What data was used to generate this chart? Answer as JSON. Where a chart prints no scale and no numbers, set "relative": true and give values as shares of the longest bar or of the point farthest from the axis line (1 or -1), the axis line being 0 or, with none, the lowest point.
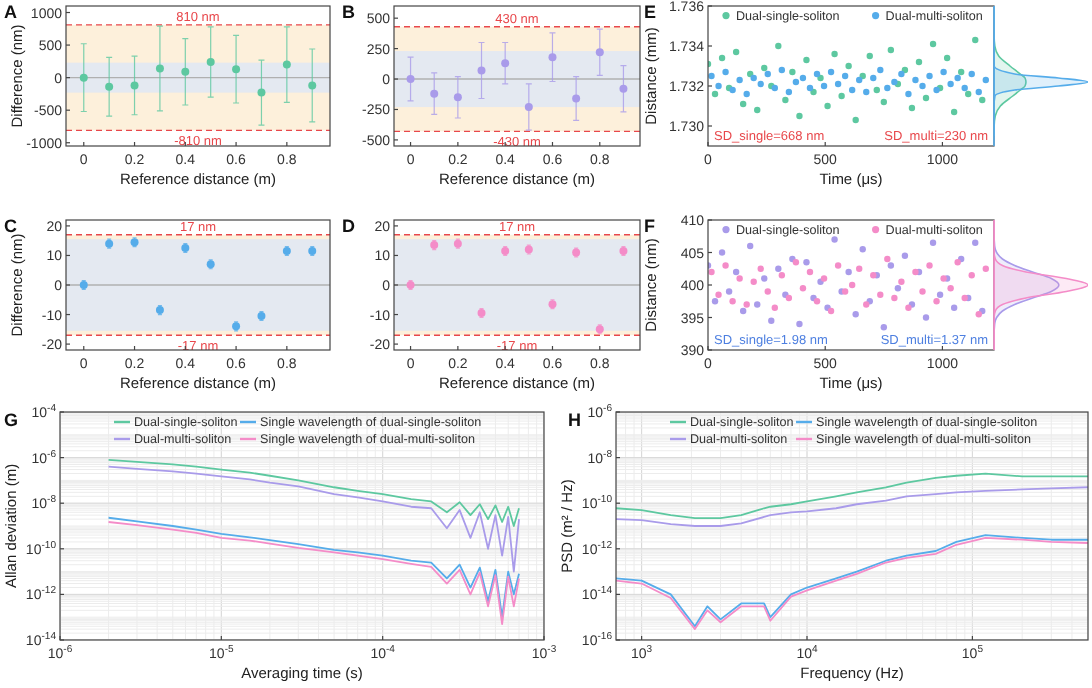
{
  "chart_data": [
    {
      "type": "scatter",
      "title": "A",
      "xlabel": "Reference distance (m)",
      "ylabel": "Difference (nm)",
      "x": [
        0,
        0.1,
        0.2,
        0.3,
        0.4,
        0.5,
        0.6,
        0.7,
        0.8,
        0.9
      ],
      "xlim": [
        -0.07,
        0.97
      ],
      "xticks": [
        0,
        0.2,
        0.4,
        0.6,
        0.8
      ],
      "ylim": [
        -1050,
        1100
      ],
      "yticks": [
        -1000,
        -500,
        0,
        500,
        1000
      ],
      "marker": "circle",
      "series": [
        {
          "color": "#5dc8a0",
          "values": [
            0,
            -140,
            -120,
            140,
            90,
            240,
            130,
            -230,
            200,
            -120
          ],
          "errors": [
            520,
            450,
            450,
            650,
            510,
            540,
            520,
            500,
            580,
            560
          ]
        }
      ],
      "bands": [
        {
          "axis": "y",
          "from": -810,
          "to": 810,
          "color": "#fdf0db"
        },
        {
          "axis": "y",
          "from": -230,
          "to": 230,
          "color": "#e4e9f1"
        }
      ],
      "ref_lines": [
        {
          "axis": "y",
          "value": 810,
          "label": "810 nm",
          "color": "#e8474b",
          "line_style": "dashed"
        },
        {
          "axis": "y",
          "value": -810,
          "label": "-810 nm",
          "color": "#e8474b",
          "line_style": "dashed"
        },
        {
          "axis": "y",
          "value": 0,
          "color": "#b0b0b0",
          "line_style": "solid"
        }
      ]
    },
    {
      "type": "scatter",
      "title": "B",
      "xlabel": "Reference distance (m)",
      "x": [
        0,
        0.1,
        0.2,
        0.3,
        0.4,
        0.5,
        0.6,
        0.7,
        0.8,
        0.9
      ],
      "xlim": [
        -0.07,
        0.97
      ],
      "xticks": [
        0,
        0.2,
        0.4,
        0.6,
        0.8
      ],
      "ylim": [
        -550,
        600
      ],
      "yticks": [
        -500,
        -250,
        0,
        250,
        500
      ],
      "marker": "circle",
      "series": [
        {
          "color": "#a99bea",
          "values": [
            0,
            -120,
            -150,
            70,
            130,
            -230,
            180,
            -160,
            220,
            -80
          ],
          "errors": [
            180,
            170,
            170,
            230,
            170,
            190,
            200,
            180,
            190,
            190
          ]
        }
      ],
      "bands": [
        {
          "axis": "y",
          "from": -430,
          "to": 430,
          "color": "#fdf0db"
        },
        {
          "axis": "y",
          "from": -230,
          "to": 230,
          "color": "#e4e9f1"
        }
      ],
      "ref_lines": [
        {
          "axis": "y",
          "value": 430,
          "label": "430 nm",
          "color": "#e8474b",
          "line_style": "dashed"
        },
        {
          "axis": "y",
          "value": -430,
          "label": "-430 nm",
          "color": "#e8474b",
          "line_style": "dashed"
        },
        {
          "axis": "y",
          "value": 0,
          "color": "#b0b0b0",
          "line_style": "solid"
        }
      ]
    },
    {
      "type": "scatter",
      "title": "E",
      "xlabel": "Time (μs)",
      "ylabel": "Distance (mm)",
      "xlim": [
        0,
        1220
      ],
      "xticks": [
        0,
        500,
        1000
      ],
      "ylim": [
        1.729,
        1.736
      ],
      "yticks": [
        {
          "value": 1.73,
          "label": "1.730"
        },
        {
          "value": 1.732,
          "label": "1.732"
        },
        {
          "value": 1.734,
          "label": "1.734"
        },
        {
          "value": 1.736,
          "label": "1.736"
        }
      ],
      "marker": "circle",
      "legend": "top",
      "annotations": [
        "SD_single=668 nm",
        "SD_multi=230 nm"
      ],
      "series": [
        {
          "name": "Dual-single-soliton",
          "color": "#5dc8a0",
          "x": [
            0,
            30,
            60,
            90,
            120,
            150,
            180,
            210,
            240,
            270,
            300,
            330,
            360,
            390,
            420,
            450,
            480,
            510,
            540,
            570,
            600,
            630,
            660,
            690,
            720,
            750,
            780,
            810,
            840,
            870,
            900,
            930,
            960,
            990,
            1020,
            1050,
            1080,
            1110,
            1140,
            1170
          ],
          "values": [
            1.7331,
            1.7316,
            1.7334,
            1.7319,
            1.7337,
            1.7311,
            1.7326,
            1.7308,
            1.7329,
            1.732,
            1.734,
            1.7313,
            1.7327,
            1.7305,
            1.7333,
            1.7317,
            1.7324,
            1.731,
            1.7336,
            1.7315,
            1.733,
            1.7303,
            1.7325,
            1.7335,
            1.7318,
            1.7312,
            1.7338,
            1.7321,
            1.7328,
            1.7309,
            1.7332,
            1.7314,
            1.7341,
            1.7319,
            1.7334,
            1.7307,
            1.7327,
            1.7316,
            1.7343,
            1.7313
          ]
        },
        {
          "name": "Dual-multi-soliton",
          "color": "#55acea",
          "x": [
            15,
            45,
            75,
            105,
            135,
            165,
            195,
            225,
            255,
            285,
            315,
            345,
            375,
            405,
            435,
            465,
            495,
            525,
            555,
            585,
            615,
            645,
            675,
            705,
            735,
            765,
            795,
            825,
            855,
            885,
            915,
            945,
            975,
            1005,
            1035,
            1065,
            1095,
            1125,
            1155,
            1185
          ],
          "values": [
            1.7325,
            1.732,
            1.7327,
            1.7318,
            1.7323,
            1.7316,
            1.7324,
            1.7321,
            1.7326,
            1.7319,
            1.7328,
            1.7317,
            1.7322,
            1.7324,
            1.7319,
            1.7326,
            1.732,
            1.7327,
            1.7321,
            1.7325,
            1.7318,
            1.7323,
            1.7317,
            1.7324,
            1.7328,
            1.7319,
            1.7322,
            1.7326,
            1.7316,
            1.7323,
            1.732,
            1.7325,
            1.7318,
            1.7327,
            1.7321,
            1.7324,
            1.7319,
            1.7326,
            1.7317,
            1.7323
          ]
        }
      ]
    },
    {
      "type": "area",
      "relative": true,
      "orientation": "horizontal",
      "ylim": [
        1.729,
        1.736
      ],
      "x": [
        1.7295,
        1.73,
        1.7305,
        1.731,
        1.7315,
        1.7318,
        1.732,
        1.7322,
        1.7324,
        1.7326,
        1.733,
        1.7335,
        1.734,
        1.7345,
        1.735,
        1.736
      ],
      "series": [
        {
          "color": "#5dc8a0",
          "values": [
            0,
            0.0015,
            0.013,
            0.068,
            0.2,
            0.28,
            0.33,
            0.34,
            0.33,
            0.28,
            0.17,
            0.05,
            0.009,
            0.001,
            0,
            0
          ]
        },
        {
          "color": "#55acea",
          "values": [
            0,
            0,
            0,
            0,
            0.01,
            0.22,
            0.685,
            1,
            0.685,
            0.22,
            0.002,
            0,
            0,
            0,
            0,
            0
          ]
        }
      ]
    },
    {
      "type": "scatter",
      "title": "C",
      "xlabel": "Reference distance (m)",
      "ylabel": "Difference (nm)",
      "x": [
        0,
        0.1,
        0.2,
        0.3,
        0.4,
        0.5,
        0.6,
        0.7,
        0.8,
        0.9
      ],
      "xlim": [
        -0.07,
        0.97
      ],
      "xticks": [
        0,
        0.2,
        0.4,
        0.6,
        0.8
      ],
      "ylim": [
        -22,
        22
      ],
      "yticks": [
        -20,
        -10,
        0,
        10,
        20
      ],
      "marker": "circle",
      "series": [
        {
          "color": "#55acea",
          "values": [
            0,
            14,
            14.5,
            -8.5,
            12.5,
            7,
            -14,
            -10.5,
            11.5,
            11.5
          ],
          "errors": [
            1.5,
            1.5,
            1.5,
            1.5,
            1.5,
            1.5,
            1.5,
            1.5,
            1.5,
            1.5
          ]
        }
      ],
      "bands": [
        {
          "axis": "y",
          "from": -17,
          "to": 17,
          "color": "#fdf0db"
        },
        {
          "axis": "y",
          "from": -15.5,
          "to": 15.5,
          "color": "#e4e9f1"
        }
      ],
      "ref_lines": [
        {
          "axis": "y",
          "value": 17,
          "label": "17 nm",
          "color": "#e8474b",
          "line_style": "dashed"
        },
        {
          "axis": "y",
          "value": -17,
          "label": "-17 nm",
          "color": "#e8474b",
          "line_style": "dashed"
        },
        {
          "axis": "y",
          "value": 0,
          "color": "#b0b0b0",
          "line_style": "solid"
        }
      ]
    },
    {
      "type": "scatter",
      "title": "D",
      "xlabel": "Reference distance (m)",
      "x": [
        0,
        0.1,
        0.2,
        0.3,
        0.4,
        0.5,
        0.6,
        0.7,
        0.8,
        0.9
      ],
      "xlim": [
        -0.07,
        0.97
      ],
      "xticks": [
        0,
        0.2,
        0.4,
        0.6,
        0.8
      ],
      "ylim": [
        -22,
        22
      ],
      "yticks": [
        -20,
        -10,
        0,
        10,
        20
      ],
      "marker": "circle",
      "series": [
        {
          "color": "#f48cc8",
          "values": [
            0,
            13.5,
            14,
            -9.5,
            11.5,
            12,
            -6.5,
            11,
            -15,
            11.5
          ],
          "errors": [
            1.5,
            1.5,
            1.5,
            1.5,
            1.5,
            1.5,
            1.5,
            1.5,
            1.5,
            1.5
          ]
        }
      ],
      "bands": [
        {
          "axis": "y",
          "from": -17,
          "to": 17,
          "color": "#fdf0db"
        },
        {
          "axis": "y",
          "from": -15.5,
          "to": 15.5,
          "color": "#e4e9f1"
        }
      ],
      "ref_lines": [
        {
          "axis": "y",
          "value": 17,
          "label": "17 nm",
          "color": "#e8474b",
          "line_style": "dashed"
        },
        {
          "axis": "y",
          "value": -17,
          "label": "-17 nm",
          "color": "#e8474b",
          "line_style": "dashed"
        },
        {
          "axis": "y",
          "value": 0,
          "color": "#b0b0b0",
          "line_style": "solid"
        }
      ]
    },
    {
      "type": "scatter",
      "title": "F",
      "xlabel": "Time (μs)",
      "ylabel": "Distance (nm)",
      "xlim": [
        0,
        1220
      ],
      "xticks": [
        0,
        500,
        1000
      ],
      "ylim": [
        390,
        410
      ],
      "yticks": [
        390,
        395,
        400,
        405,
        410
      ],
      "marker": "circle",
      "legend": "top",
      "annotations": [
        "SD_single=1.98 nm",
        "SD_multi=1.37 nm"
      ],
      "series": [
        {
          "name": "Dual-single-soliton",
          "color": "#a99bea",
          "x": [
            0,
            30,
            60,
            90,
            120,
            150,
            180,
            210,
            240,
            270,
            300,
            330,
            360,
            390,
            420,
            450,
            480,
            510,
            540,
            570,
            600,
            630,
            660,
            690,
            720,
            750,
            780,
            810,
            840,
            870,
            900,
            930,
            960,
            990,
            1020,
            1050,
            1080,
            1110,
            1140,
            1170
          ],
          "values": [
            403,
            397.5,
            405,
            399,
            402,
            396,
            406,
            397,
            401,
            394.5,
            402.5,
            398.5,
            404,
            394,
            403.5,
            398,
            400.5,
            396.5,
            407,
            399,
            402,
            395.5,
            405.5,
            397.5,
            401.5,
            393.5,
            403,
            399.5,
            404.5,
            397,
            402,
            395,
            406.5,
            398.5,
            401,
            396.5,
            404,
            398,
            406.5,
            396
          ]
        },
        {
          "name": "Dual-multi-soliton",
          "color": "#f48cc8",
          "x": [
            15,
            45,
            75,
            105,
            135,
            165,
            195,
            225,
            255,
            285,
            315,
            345,
            375,
            405,
            435,
            465,
            495,
            525,
            555,
            585,
            615,
            645,
            675,
            705,
            735,
            765,
            795,
            825,
            855,
            885,
            915,
            945,
            975,
            1005,
            1035,
            1065,
            1095,
            1125,
            1155,
            1185
          ],
          "values": [
            402,
            398.5,
            403,
            397.5,
            401,
            397,
            400.5,
            402.5,
            399,
            396.5,
            401.5,
            398,
            403.5,
            399.5,
            402,
            397.5,
            401,
            396,
            403,
            399,
            400,
            402.5,
            397,
            401.5,
            398.5,
            404,
            398,
            400.5,
            396.5,
            402,
            399,
            403,
            397.5,
            401,
            399.5,
            403.5,
            398,
            401.5,
            395.5,
            402.5
          ]
        }
      ]
    },
    {
      "type": "area",
      "relative": true,
      "orientation": "horizontal",
      "ylim": [
        390,
        410
      ],
      "x": [
        390,
        392,
        394,
        395,
        396,
        397,
        398,
        399,
        400,
        401,
        402,
        403,
        404,
        405,
        406,
        408,
        410
      ],
      "series": [
        {
          "color": "#a99bea",
          "values": [
            0,
            0,
            0.007,
            0.028,
            0.09,
            0.22,
            0.41,
            0.61,
            0.69,
            0.61,
            0.41,
            0.22,
            0.09,
            0.028,
            0.007,
            0,
            0
          ]
        },
        {
          "color": "#f48cc8",
          "values": [
            0,
            0,
            0,
            0.001,
            0.014,
            0.09,
            0.34,
            0.77,
            1,
            0.77,
            0.34,
            0.09,
            0.014,
            0.001,
            0,
            0,
            0
          ]
        }
      ]
    },
    {
      "type": "line",
      "title": "G",
      "xlabel": "Averaging time (s)",
      "ylabel": "Allan deviation (m)",
      "log": "xy",
      "grid": true,
      "legend": "top",
      "xlim": [
        1e-06,
        0.001
      ],
      "xticks": [
        {
          "value": 1e-06,
          "label": "10$^{-6}$"
        },
        {
          "value": 1e-05,
          "label": "10$^{-5}$"
        },
        {
          "value": 0.0001,
          "label": "10$^{-4}$"
        },
        {
          "value": 0.001,
          "label": "10$^{-3}$"
        }
      ],
      "ylim": [
        1e-14,
        0.0001
      ],
      "yticks": [
        {
          "value": 1e-14,
          "label": "10$^{-14}$"
        },
        {
          "value": 1e-12,
          "label": "10$^{-12}$"
        },
        {
          "value": 1e-10,
          "label": "10$^{-10}$"
        },
        {
          "value": 1e-08,
          "label": "10$^{-8}$"
        },
        {
          "value": 1e-06,
          "label": "10$^{-6}$"
        },
        {
          "value": 0.0001,
          "label": "10$^{-4}$"
        }
      ],
      "x": [
        2e-06,
        3e-06,
        5e-06,
        7e-06,
        1e-05,
        1.5e-05,
        2e-05,
        3e-05,
        5e-05,
        7e-05,
        0.0001,
        0.00015,
        0.0002,
        0.00025,
        0.0003,
        0.00035,
        0.0004,
        0.00045,
        0.0005,
        0.00055,
        0.0006,
        0.00065,
        0.0007
      ],
      "series": [
        {
          "name": "Dual-single-soliton",
          "color": "#5dc8a0",
          "values": [
            8e-07,
            6.5e-07,
            5e-07,
            4e-07,
            3e-07,
            2.2e-07,
            1.6e-07,
            1e-07,
            5e-08,
            3.5e-08,
            2.5e-08,
            1.5e-08,
            1.2e-08,
            4e-09,
            1.1e-08,
            3e-09,
            9e-09,
            2e-09,
            8e-09,
            1.5e-09,
            7e-09,
            1e-09,
            6e-09
          ]
        },
        {
          "name": "Dual-multi-soliton",
          "color": "#a99bea",
          "values": [
            4e-07,
            3.2e-07,
            2.5e-07,
            2e-07,
            1.5e-07,
            1.1e-07,
            8e-08,
            5.5e-08,
            2.5e-08,
            1.8e-08,
            1.2e-08,
            7e-09,
            6e-09,
            8e-10,
            5e-09,
            3e-10,
            4e-09,
            1e-10,
            3e-09,
            5e-11,
            2.5e-09,
            1e-11,
            2e-09
          ]
        },
        {
          "name": "Single wavelength of dual-single-soliton",
          "color": "#55acea",
          "values": [
            2.3e-09,
            1.6e-09,
            1e-09,
            7e-10,
            4.5e-10,
            3.2e-10,
            2.4e-10,
            1.6e-10,
            9e-11,
            7e-11,
            5e-11,
            3e-11,
            2.5e-11,
            5e-12,
            2e-11,
            2e-12,
            1.5e-11,
            5e-13,
            1.2e-11,
            1e-13,
            1e-11,
            1e-12,
            8e-12
          ]
        },
        {
          "name": "Single wavelength of dual-multi-soliton",
          "color": "#f48cc8",
          "values": [
            1.5e-09,
            1.1e-09,
            7e-10,
            5e-10,
            3e-10,
            2.3e-10,
            1.7e-10,
            1.1e-10,
            7e-11,
            5e-11,
            3.5e-11,
            2.2e-11,
            1.6e-11,
            3e-12,
            1.2e-11,
            1e-12,
            9e-12,
            3e-13,
            7e-12,
            5e-14,
            6e-12,
            3e-13,
            5e-12
          ]
        }
      ]
    },
    {
      "type": "line",
      "title": "H",
      "xlabel": "Frequency (Hz)",
      "ylabel": "PSD (m² / Hz)",
      "log": "xy",
      "grid": true,
      "legend": "top",
      "xlim": [
        700,
        500000.0
      ],
      "xticks": [
        {
          "value": 1000,
          "label": "10$^{3}$"
        },
        {
          "value": 10000,
          "label": "10$^{4}$"
        },
        {
          "value": 100000,
          "label": "10$^{5}$"
        }
      ],
      "ylim": [
        1e-16,
        1e-06
      ],
      "yticks": [
        {
          "value": 1e-16,
          "label": "10$^{-16}$"
        },
        {
          "value": 1e-14,
          "label": "10$^{-14}$"
        },
        {
          "value": 1e-12,
          "label": "10$^{-12}$"
        },
        {
          "value": 1e-10,
          "label": "10$^{-10}$"
        },
        {
          "value": 1e-08,
          "label": "10$^{-8}$"
        },
        {
          "value": 1e-06,
          "label": "10$^{-6}$"
        }
      ],
      "x": [
        700,
        1000,
        1500,
        2100,
        2500,
        3000,
        4000,
        5500,
        6000,
        8000,
        10000,
        15000,
        20000,
        30000,
        40000,
        60000,
        80000,
        120000,
        200000,
        300000,
        500000
      ],
      "series": [
        {
          "name": "Dual-single-soliton",
          "color": "#5dc8a0",
          "values": [
            6e-11,
            5e-11,
            3e-11,
            2.2e-11,
            2.2e-11,
            2.2e-11,
            3e-11,
            6e-11,
            7e-11,
            9e-11,
            1.2e-10,
            2e-10,
            3e-10,
            5e-10,
            8e-10,
            1.3e-09,
            1.6e-09,
            2e-09,
            1.5e-09,
            1.5e-09,
            1.5e-09
          ]
        },
        {
          "name": "Dual-multi-soliton",
          "color": "#a99bea",
          "values": [
            2e-11,
            1.8e-11,
            1.2e-11,
            1e-11,
            1e-11,
            1e-11,
            1.3e-11,
            2.5e-11,
            3e-11,
            4e-11,
            4.4e-11,
            6e-11,
            9e-11,
            1.3e-10,
            2e-10,
            2.5e-10,
            3e-10,
            3.5e-10,
            4e-10,
            4.5e-10,
            5e-10
          ]
        },
        {
          "name": "Single wavelength of dual-single-soliton",
          "color": "#55acea",
          "values": [
            5e-14,
            4e-14,
            1e-14,
            4e-16,
            3e-15,
            8e-16,
            4e-15,
            4e-15,
            1e-15,
            1e-14,
            2e-14,
            5e-14,
            1e-13,
            3e-13,
            5e-13,
            8e-13,
            2e-12,
            4e-12,
            3e-12,
            2.5e-12,
            2.5e-12
          ]
        },
        {
          "name": "Single wavelength of dual-multi-soliton",
          "color": "#f48cc8",
          "values": [
            4e-14,
            3e-14,
            7e-15,
            3e-16,
            2e-15,
            6e-16,
            3e-15,
            3e-15,
            7e-16,
            8e-15,
            1.5e-14,
            4e-14,
            8e-14,
            2.5e-13,
            4e-13,
            6e-13,
            1.5e-12,
            3e-12,
            2.5e-12,
            2e-12,
            1.8e-12
          ]
        }
      ]
    }
  ]
}
